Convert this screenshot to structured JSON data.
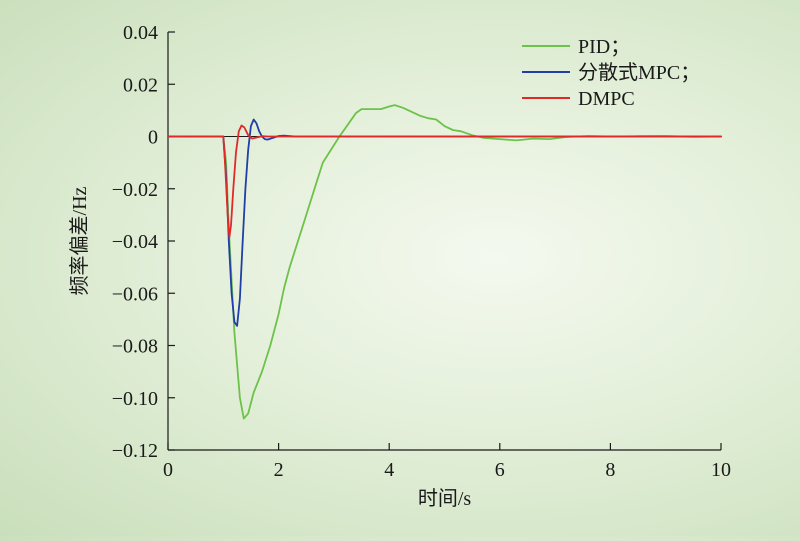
{
  "chart_data": {
    "type": "line",
    "title": "",
    "xlabel": "时间/s",
    "ylabel": "频率偏差/Hz",
    "xlim": [
      0,
      10
    ],
    "ylim": [
      -0.12,
      0.04
    ],
    "x_ticks": [
      0,
      2,
      4,
      6,
      8,
      10
    ],
    "x_tick_labels": [
      "0",
      "2",
      "4",
      "6",
      "8",
      "10"
    ],
    "y_ticks": [
      0.04,
      0.02,
      0,
      -0.02,
      -0.04,
      -0.06,
      -0.08,
      -0.1,
      -0.12
    ],
    "y_tick_labels": [
      "0.04",
      "0.02",
      "0",
      "−0.02",
      "−0.04",
      "−0.06",
      "−0.08",
      "−0.10",
      "−0.12"
    ],
    "grid": false,
    "legend_position": "top-right",
    "series": [
      {
        "name": "PID；",
        "color": "#6cc24a",
        "points": [
          [
            0,
            0
          ],
          [
            1.0,
            0
          ],
          [
            1.05,
            -0.01
          ],
          [
            1.1,
            -0.035
          ],
          [
            1.2,
            -0.075
          ],
          [
            1.3,
            -0.1
          ],
          [
            1.37,
            -0.108
          ],
          [
            1.45,
            -0.106
          ],
          [
            1.55,
            -0.098
          ],
          [
            1.7,
            -0.09
          ],
          [
            1.85,
            -0.08
          ],
          [
            2.0,
            -0.068
          ],
          [
            2.1,
            -0.058
          ],
          [
            2.2,
            -0.05
          ],
          [
            2.35,
            -0.04
          ],
          [
            2.5,
            -0.03
          ],
          [
            2.65,
            -0.02
          ],
          [
            2.8,
            -0.01
          ],
          [
            2.95,
            -0.005
          ],
          [
            3.1,
            0.0
          ],
          [
            3.2,
            0.003
          ],
          [
            3.3,
            0.006
          ],
          [
            3.4,
            0.009
          ],
          [
            3.5,
            0.0105
          ],
          [
            3.7,
            0.0105
          ],
          [
            3.85,
            0.0105
          ],
          [
            4.0,
            0.0115
          ],
          [
            4.1,
            0.012
          ],
          [
            4.25,
            0.011
          ],
          [
            4.4,
            0.0095
          ],
          [
            4.55,
            0.008
          ],
          [
            4.7,
            0.007
          ],
          [
            4.85,
            0.0065
          ],
          [
            5.0,
            0.004
          ],
          [
            5.15,
            0.0025
          ],
          [
            5.3,
            0.002
          ],
          [
            5.5,
            0.0005
          ],
          [
            5.7,
            -0.0005
          ],
          [
            6.0,
            -0.001
          ],
          [
            6.3,
            -0.0015
          ],
          [
            6.6,
            -0.0008
          ],
          [
            6.9,
            -0.001
          ],
          [
            7.2,
            -0.0002
          ],
          [
            7.6,
            0.0002
          ],
          [
            8.0,
            0.0
          ],
          [
            8.5,
            0.0001
          ],
          [
            9.0,
            0.0002
          ],
          [
            9.5,
            -0.0001
          ],
          [
            10.0,
            0.0
          ]
        ]
      },
      {
        "name": "分散式MPC；",
        "color": "#1f3fa6",
        "points": [
          [
            0,
            0
          ],
          [
            1.0,
            0
          ],
          [
            1.05,
            -0.015
          ],
          [
            1.1,
            -0.04
          ],
          [
            1.15,
            -0.06
          ],
          [
            1.2,
            -0.071
          ],
          [
            1.25,
            -0.0725
          ],
          [
            1.3,
            -0.062
          ],
          [
            1.35,
            -0.04
          ],
          [
            1.4,
            -0.02
          ],
          [
            1.45,
            -0.005
          ],
          [
            1.5,
            0.004
          ],
          [
            1.55,
            0.0065
          ],
          [
            1.6,
            0.005
          ],
          [
            1.65,
            0.002
          ],
          [
            1.7,
            0.0
          ],
          [
            1.75,
            -0.001
          ],
          [
            1.8,
            -0.0012
          ],
          [
            1.9,
            -0.0005
          ],
          [
            2.0,
            0.0002
          ],
          [
            2.1,
            0.0003
          ],
          [
            2.3,
            0.0
          ],
          [
            10.0,
            0.0
          ]
        ]
      },
      {
        "name": "DMPC",
        "color": "#e02a2a",
        "points": [
          [
            0,
            0
          ],
          [
            1.0,
            0
          ],
          [
            1.03,
            -0.01
          ],
          [
            1.08,
            -0.03
          ],
          [
            1.11,
            -0.0385
          ],
          [
            1.14,
            -0.034
          ],
          [
            1.18,
            -0.02
          ],
          [
            1.23,
            -0.006
          ],
          [
            1.28,
            0.002
          ],
          [
            1.33,
            0.0042
          ],
          [
            1.38,
            0.0035
          ],
          [
            1.45,
            0.0005
          ],
          [
            1.52,
            -0.0008
          ],
          [
            1.6,
            -0.0004
          ],
          [
            1.7,
            0.0001
          ],
          [
            1.8,
            0.0
          ],
          [
            10.0,
            0.0
          ]
        ]
      }
    ]
  }
}
